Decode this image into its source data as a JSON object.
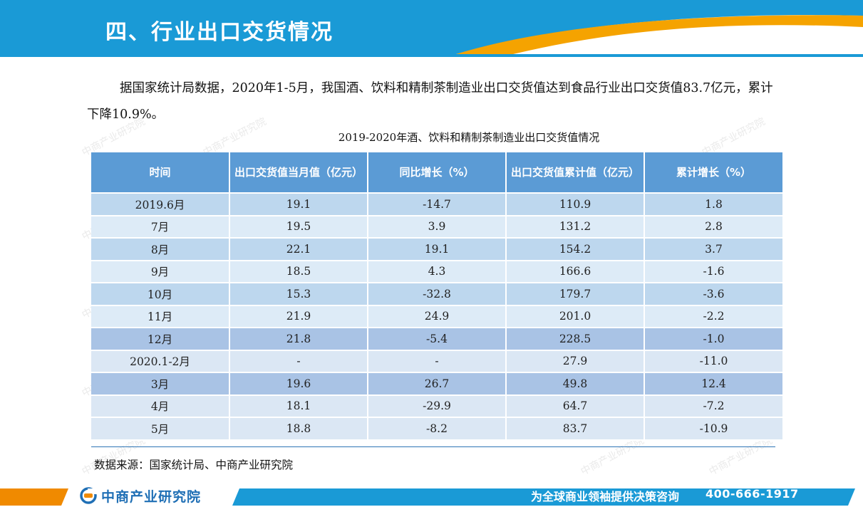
{
  "header": {
    "title": "四、行业出口交货情况"
  },
  "intro": "据国家统计局数据，2020年1-5月，我国酒、饮料和精制茶制造业出口交货值达到食品行业出口交货值83.7亿元，累计下降10.9%。",
  "table": {
    "caption": "2019-2020年酒、饮料和精制茶制造业出口交货值情况",
    "columns": [
      "时间",
      "出口交货值当月值（亿元）",
      "同比增长（%）",
      "出口交货值累计值（亿元）",
      "累计增长（%）"
    ],
    "rows": [
      [
        "2019.6月",
        "19.1",
        "-14.7",
        "110.9",
        "1.8"
      ],
      [
        "7月",
        "19.5",
        "3.9",
        "131.2",
        "2.8"
      ],
      [
        "8月",
        "22.1",
        "19.1",
        "154.2",
        "3.7"
      ],
      [
        "9月",
        "18.5",
        "4.3",
        "166.6",
        "-1.6"
      ],
      [
        "10月",
        "15.3",
        "-32.8",
        "179.7",
        "-3.6"
      ],
      [
        "11月",
        "21.9",
        "24.9",
        "201.0",
        "-2.2"
      ],
      [
        "12月",
        "21.8",
        "-5.4",
        "228.5",
        "-1.0"
      ],
      [
        "2020.1-2月",
        "-",
        "-",
        "27.9",
        "-11.0"
      ],
      [
        "3月",
        "19.6",
        "26.7",
        "49.8",
        "12.4"
      ],
      [
        "4月",
        "18.1",
        "-29.9",
        "64.7",
        "-7.2"
      ],
      [
        "5月",
        "18.8",
        "-8.2",
        "83.7",
        "-10.9"
      ]
    ]
  },
  "source": "数据来源：国家统计局、中商产业研究院",
  "footer": {
    "logo_text": "中商产业研究院",
    "slogan": "为全球商业领袖提供决策咨询",
    "phone": "400-666-1917"
  },
  "watermark": {
    "text": "中商产业研究院"
  },
  "colors": {
    "header_blue": "#1a9ad6",
    "accent_orange": "#f5a300",
    "table_header": "#5b9bd5",
    "logo_blue": "#1f6fb5"
  }
}
